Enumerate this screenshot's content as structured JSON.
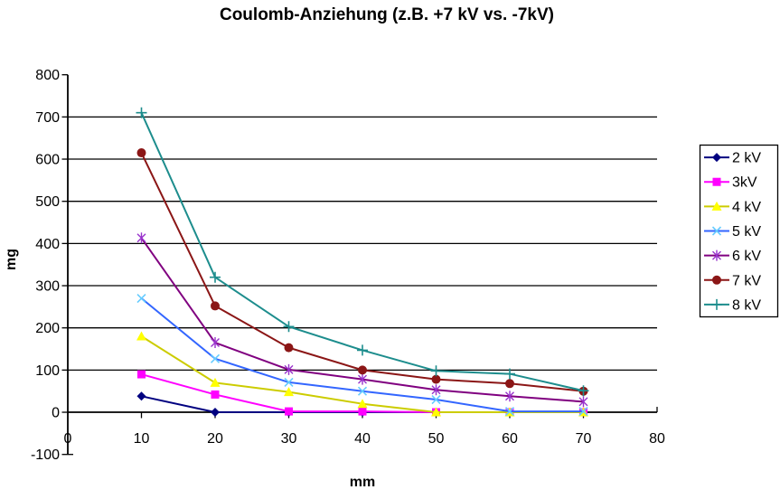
{
  "chart_data": {
    "type": "line",
    "title": "Coulomb-Anziehung (z.B. +7 kV vs. -7kV)",
    "xlabel": "mm",
    "ylabel": "mg",
    "xlim": [
      0,
      80
    ],
    "ylim": [
      -100,
      800
    ],
    "x_ticks": [
      0,
      10,
      20,
      30,
      40,
      50,
      60,
      70,
      80
    ],
    "y_ticks": [
      -100,
      0,
      100,
      200,
      300,
      400,
      500,
      600,
      700,
      800
    ],
    "grid": true,
    "gridline_values": [
      100,
      200,
      300,
      400,
      500,
      600,
      700
    ],
    "legend_position": "right",
    "x": [
      10,
      20,
      30,
      40,
      50,
      60,
      70
    ],
    "series": [
      {
        "name": "2 kV",
        "marker": "diamond",
        "line_color": "#000080",
        "marker_color": "#000080",
        "values": [
          38,
          0,
          0,
          0,
          0,
          0,
          0
        ]
      },
      {
        "name": "3kV",
        "marker": "square",
        "line_color": "#ff00ff",
        "marker_color": "#ff00ff",
        "values": [
          90,
          42,
          2,
          2,
          0,
          0,
          0
        ]
      },
      {
        "name": "4 kV",
        "marker": "triangle",
        "line_color": "#cccc00",
        "marker_color": "#ffff00",
        "values": [
          180,
          70,
          48,
          20,
          0,
          0,
          0
        ]
      },
      {
        "name": "5 kV",
        "marker": "x",
        "line_color": "#3366ff",
        "marker_color": "#66ccff",
        "values": [
          270,
          127,
          71,
          50,
          30,
          2,
          2
        ]
      },
      {
        "name": "6 kV",
        "marker": "asterisk",
        "line_color": "#800080",
        "marker_color": "#9933cc",
        "values": [
          413,
          165,
          101,
          78,
          53,
          38,
          25
        ]
      },
      {
        "name": "7 kV",
        "marker": "circle",
        "line_color": "#8b1616",
        "marker_color": "#8b1616",
        "values": [
          615,
          252,
          153,
          100,
          78,
          68,
          50
        ]
      },
      {
        "name": "8 kV",
        "marker": "plus",
        "line_color": "#1d8d8d",
        "marker_color": "#1d8d8d",
        "values": [
          710,
          320,
          203,
          147,
          98,
          91,
          51
        ]
      }
    ],
    "colors": {
      "axis": "#000000",
      "grid": "#000000",
      "background": "#ffffff",
      "legend_border": "#000000"
    }
  }
}
